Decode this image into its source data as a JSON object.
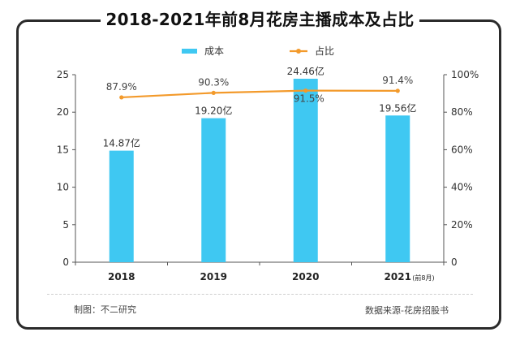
{
  "title": "2018-2021年前8月花房主播成本及占比",
  "chart_data": {
    "type": "bar",
    "categories": [
      "2018",
      "2019",
      "2020",
      "2021"
    ],
    "category_suffix": [
      "",
      "",
      "",
      "(前8月)"
    ],
    "series": [
      {
        "name": "成本",
        "type": "bar",
        "axis": "left",
        "values": [
          14.87,
          19.2,
          24.46,
          19.56
        ],
        "labels": [
          "14.87亿",
          "19.20亿",
          "24.46亿",
          "19.56亿"
        ],
        "color": "#3FC8F2"
      },
      {
        "name": "占比",
        "type": "line",
        "axis": "right",
        "values": [
          87.9,
          90.3,
          91.5,
          91.4
        ],
        "labels": [
          "87.9%",
          "90.3%",
          "91.5%",
          "91.4%"
        ],
        "color": "#F39A2B"
      }
    ],
    "y_left": {
      "ylim": [
        0,
        25
      ],
      "ticks": [
        "0",
        "5",
        "10",
        "15",
        "20",
        "25"
      ]
    },
    "y_right": {
      "ylim": [
        0,
        100
      ],
      "ticks": [
        "0",
        "20%",
        "40%",
        "60%",
        "80%",
        "100%"
      ]
    },
    "legend_position": "top-center",
    "grid": false
  },
  "footer": {
    "left": "制图：不二研究",
    "right": "数据来源-花房招股书"
  }
}
